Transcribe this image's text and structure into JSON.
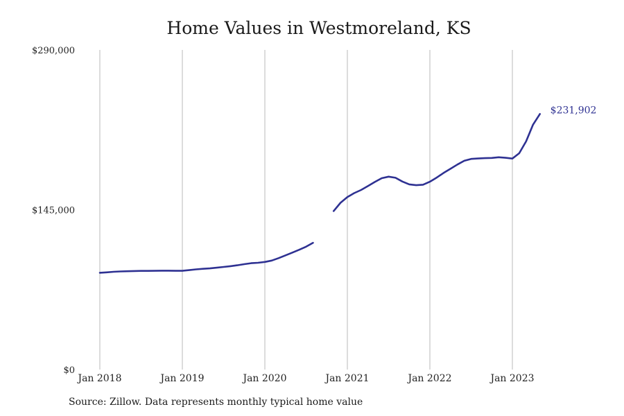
{
  "chart_data": {
    "type": "line",
    "title": "Home Values in Westmoreland, KS",
    "xlabel": "",
    "ylabel": "",
    "x_ticks": [
      "Jan 2018",
      "Jan 2019",
      "Jan 2020",
      "Jan 2021",
      "Jan 2022",
      "Jan 2023"
    ],
    "y_ticks": [
      "$0",
      "$145,000",
      "$290,000"
    ],
    "ylim": [
      0,
      290000
    ],
    "xlim": [
      "2018-01",
      "2024-01"
    ],
    "grid": "vertical at year ticks",
    "color": "#2e3192",
    "end_label": "$231,902",
    "series": [
      {
        "segments": [
          {
            "x": [
              "2018-01",
              "2018-02",
              "2018-03",
              "2018-04",
              "2018-05",
              "2018-06",
              "2018-07",
              "2018-08",
              "2018-09",
              "2018-10",
              "2018-11",
              "2018-12",
              "2019-01",
              "2019-02",
              "2019-03",
              "2019-04",
              "2019-05",
              "2019-06",
              "2019-07",
              "2019-08",
              "2019-09",
              "2019-10",
              "2019-11",
              "2019-12",
              "2020-01",
              "2020-02",
              "2020-03",
              "2020-04",
              "2020-05",
              "2020-06",
              "2020-07",
              "2020-08"
            ],
            "values": [
              87800,
              88200,
              88700,
              89000,
              89200,
              89400,
              89500,
              89500,
              89600,
              89700,
              89700,
              89600,
              89600,
              90200,
              90900,
              91400,
              91800,
              92400,
              93100,
              93800,
              94600,
              95600,
              96500,
              96900,
              97600,
              98900,
              101100,
              103600,
              106100,
              108700,
              111500,
              115000
            ]
          },
          {
            "x": [
              "2020-11",
              "2020-12",
              "2021-01",
              "2021-02",
              "2021-03",
              "2021-04",
              "2021-05",
              "2021-06",
              "2021-07",
              "2021-08",
              "2021-09",
              "2021-10",
              "2021-11",
              "2021-12",
              "2022-01",
              "2022-02",
              "2022-03",
              "2022-04",
              "2022-05",
              "2022-06",
              "2022-07",
              "2022-08",
              "2022-09",
              "2022-10",
              "2022-11",
              "2022-12",
              "2023-01",
              "2023-02",
              "2023-03",
              "2023-04",
              "2023-05"
            ],
            "values": [
              143800,
              151300,
              156500,
              160100,
              162900,
              166500,
              170200,
              173600,
              175000,
              174000,
              170600,
              168000,
              167300,
              167700,
              170400,
              174200,
              178400,
              182200,
              186000,
              189400,
              191100,
              191500,
              191800,
              192000,
              192600,
              192100,
              191400,
              196300,
              207000,
              222200,
              231902
            ]
          }
        ]
      }
    ]
  },
  "footer": {
    "source": "Source: Zillow. Data represents monthly typical home value"
  }
}
